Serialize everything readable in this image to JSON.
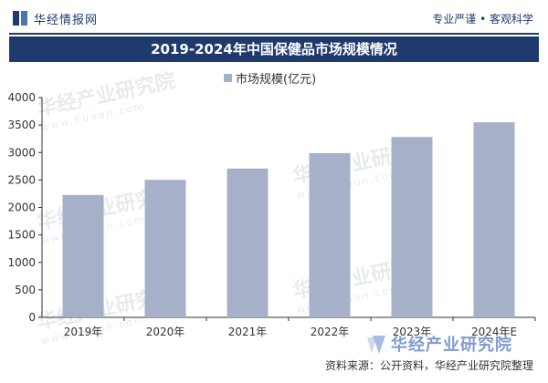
{
  "header": {
    "brand": "华经情报网",
    "tagline": "专业严谨 • 客观科学"
  },
  "title": "2019-2024年中国保健品市场规模情况",
  "legend": {
    "label": "市场规模(亿元)"
  },
  "watermarks": {
    "text": "华经产业研究院",
    "url": "www.huaon.com"
  },
  "footer": {
    "brand": "华经产业研究院",
    "source": "资料来源：公开资料，华经产业研究院整理"
  },
  "colors": {
    "bar": "#a6b0c9",
    "title_bg": "#1f3b6e",
    "axis": "#333333"
  },
  "chart_data": {
    "type": "bar",
    "title": "2019-2024年中国保健品市场规模情况",
    "categories": [
      "2019年",
      "2020年",
      "2021年",
      "2022年",
      "2023年",
      "2024年E"
    ],
    "series": [
      {
        "name": "市场规模(亿元)",
        "values": [
          2227,
          2503,
          2708,
          2989,
          3282,
          3550
        ]
      }
    ],
    "ylim": [
      0,
      4000
    ],
    "yticks": [
      0,
      500,
      1000,
      1500,
      2000,
      2500,
      3000,
      3500,
      4000
    ],
    "xlabel": "",
    "ylabel": "",
    "grid": false,
    "legend_position": "top"
  }
}
